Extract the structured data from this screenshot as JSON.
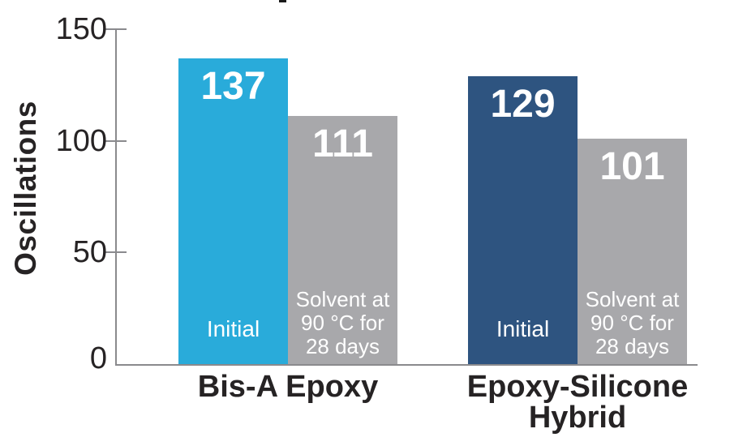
{
  "chart_data": {
    "type": "bar",
    "title": "",
    "ylabel": "Oscillations",
    "xlabel": "",
    "ylim": [
      0,
      150
    ],
    "yticks": [
      0,
      50,
      100,
      150
    ],
    "grid": false,
    "legend": "none (labels inside bars)",
    "categories": [
      "Bis-A Epoxy",
      "Epoxy-Silicone Hybrid"
    ],
    "series": [
      {
        "name": "Initial",
        "values": [
          137,
          129
        ]
      },
      {
        "name": "Solvent at 90 °C for 28 days",
        "values": [
          111,
          101
        ]
      }
    ],
    "groups": [
      {
        "label": "Bis-A Epoxy",
        "bars": [
          {
            "condition": "Initial",
            "value": 137,
            "color": "#29abda"
          },
          {
            "condition": "Solvent at\n90 °C for\n28 days",
            "value": 111,
            "color": "#a8a8ab"
          }
        ]
      },
      {
        "label": "Epoxy-Silicone\nHybrid",
        "bars": [
          {
            "condition": "Initial",
            "value": 129,
            "color": "#2e5480"
          },
          {
            "condition": "Solvent at\n90 °C for\n28 days",
            "value": 101,
            "color": "#a8a8ab"
          }
        ]
      }
    ],
    "colors": {
      "initial_bis_a": "#29abda",
      "initial_hybrid": "#2e5480",
      "solvent": "#a8a8ab",
      "axis": "#8a8a8d",
      "text": "#262324",
      "bar_text": "#ffffff"
    }
  }
}
